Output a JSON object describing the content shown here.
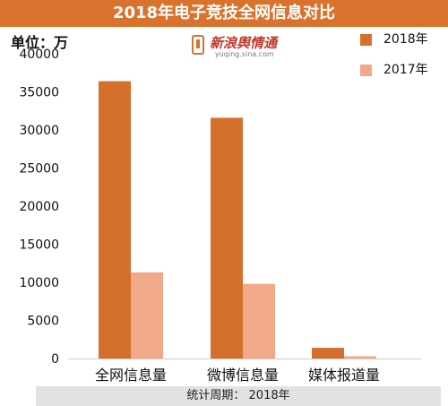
{
  "header": {
    "title": "2018年电子竞技全网信息对比"
  },
  "unit_label": "单位：万",
  "logo": {
    "main": "新浪舆情通",
    "sub": "yuqing.sina.com"
  },
  "footer": {
    "text": "统计周期： 2018年"
  },
  "colors": {
    "title_bg": "#d9722d",
    "series_2018": "#d5702c",
    "series_2017": "#f2a98a"
  },
  "chart_data": {
    "type": "bar",
    "categories": [
      "全网信息量",
      "微博信息量",
      "媒体报道量"
    ],
    "series": [
      {
        "name": "2018年",
        "values": [
          36400,
          31600,
          1400
        ]
      },
      {
        "name": "2017年",
        "values": [
          11300,
          9800,
          300
        ]
      }
    ],
    "yticks": [
      "0",
      "5000",
      "10000",
      "15000",
      "20000",
      "25000",
      "30000",
      "35000",
      "40000"
    ],
    "ylim": [
      0,
      40000
    ],
    "legend_position": "top-right",
    "grid": false
  }
}
